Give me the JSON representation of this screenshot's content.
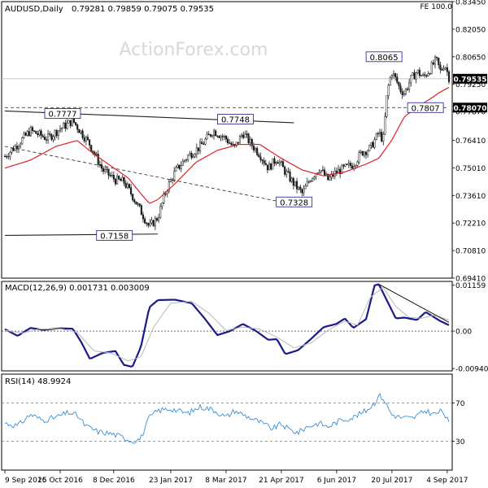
{
  "header": {
    "symbol": "AUDUSD,Daily",
    "ohlc": "0.79281 0.79859 0.79075 0.79535",
    "fe_label": "FE 100.0",
    "watermark": "ActionForex.com"
  },
  "colors": {
    "candle": "#1a1a1a",
    "ma": "#e0202a",
    "macd": "#1a1a8a",
    "signal": "#b8b8b8",
    "rsi": "#3a8fd6",
    "frame": "#000000",
    "label_border": "#1a1a8a"
  },
  "chart_data": [
    {
      "type": "candlestick",
      "title": "AUDUSD,Daily",
      "ylim": [
        0.6941,
        0.8345
      ],
      "yticks": [
        "0.83450",
        "0.82050",
        "0.80650",
        "0.79250",
        "0.77870",
        "0.76410",
        "0.75010",
        "0.73610",
        "0.72210",
        "0.70810",
        "0.69410"
      ],
      "ytick_values": [
        0.8345,
        0.8205,
        0.8065,
        0.7925,
        0.7787,
        0.7641,
        0.7501,
        0.7361,
        0.7221,
        0.7081,
        0.6941
      ],
      "price_tags": [
        {
          "label": "0.79535",
          "value": 0.79535
        },
        {
          "label": "0.78070",
          "value": 0.7807
        }
      ],
      "level_labels": [
        {
          "label": "0.7777",
          "value": 0.7777
        },
        {
          "label": "0.7748",
          "value": 0.7748
        },
        {
          "label": "0.8065",
          "value": 0.8065
        },
        {
          "label": "0.7807",
          "value": 0.7807
        },
        {
          "label": "0.7328",
          "value": 0.7328
        },
        {
          "label": "0.7158",
          "value": 0.7158
        }
      ],
      "series": [
        {
          "name": "close",
          "anchors": [
            [
              0,
              0.756
            ],
            [
              5,
              0.761
            ],
            [
              12,
              0.769
            ],
            [
              20,
              0.765
            ],
            [
              26,
              0.77
            ],
            [
              32,
              0.774
            ],
            [
              40,
              0.762
            ],
            [
              46,
              0.749
            ],
            [
              52,
              0.744
            ],
            [
              56,
              0.743
            ],
            [
              60,
              0.736
            ],
            [
              64,
              0.728
            ],
            [
              68,
              0.72
            ],
            [
              72,
              0.725
            ],
            [
              76,
              0.739
            ],
            [
              80,
              0.748
            ],
            [
              86,
              0.756
            ],
            [
              92,
              0.761
            ],
            [
              98,
              0.769
            ],
            [
              104,
              0.765
            ],
            [
              108,
              0.76
            ],
            [
              112,
              0.768
            ],
            [
              116,
              0.762
            ],
            [
              120,
              0.757
            ],
            [
              124,
              0.75
            ],
            [
              128,
              0.755
            ],
            [
              132,
              0.748
            ],
            [
              136,
              0.742
            ],
            [
              140,
              0.737
            ],
            [
              144,
              0.745
            ],
            [
              148,
              0.75
            ],
            [
              152,
              0.744
            ],
            [
              156,
              0.748
            ],
            [
              160,
              0.75
            ],
            [
              164,
              0.752
            ],
            [
              168,
              0.758
            ],
            [
              172,
              0.76
            ],
            [
              176,
              0.768
            ],
            [
              178,
              0.764
            ],
            [
              180,
              0.789
            ],
            [
              182,
              0.799
            ],
            [
              184,
              0.795
            ],
            [
              186,
              0.79
            ],
            [
              188,
              0.788
            ],
            [
              191,
              0.795
            ],
            [
              194,
              0.799
            ],
            [
              197,
              0.796
            ],
            [
              200,
              0.8
            ],
            [
              203,
              0.805
            ],
            [
              205,
              0.799
            ],
            [
              207,
              0.803
            ],
            [
              209,
              0.796
            ]
          ]
        },
        {
          "name": "MA",
          "anchors": [
            [
              0,
              0.75
            ],
            [
              12,
              0.754
            ],
            [
              24,
              0.761
            ],
            [
              34,
              0.764
            ],
            [
              42,
              0.757
            ],
            [
              50,
              0.751
            ],
            [
              58,
              0.745
            ],
            [
              64,
              0.737
            ],
            [
              68,
              0.732
            ],
            [
              72,
              0.734
            ],
            [
              80,
              0.742
            ],
            [
              90,
              0.753
            ],
            [
              100,
              0.759
            ],
            [
              110,
              0.762
            ],
            [
              120,
              0.762
            ],
            [
              130,
              0.755
            ],
            [
              140,
              0.749
            ],
            [
              150,
              0.746
            ],
            [
              160,
              0.748
            ],
            [
              170,
              0.752
            ],
            [
              176,
              0.755
            ],
            [
              182,
              0.764
            ],
            [
              188,
              0.776
            ],
            [
              194,
              0.781
            ],
            [
              200,
              0.785
            ],
            [
              204,
              0.788
            ],
            [
              209,
              0.791
            ]
          ]
        }
      ],
      "trendlines": [
        {
          "name": "upper-resistance",
          "from": [
            0,
            0.779
          ],
          "to": [
            136,
            0.773
          ]
        },
        {
          "name": "lower-support",
          "from": [
            0,
            0.7158
          ],
          "to": [
            72,
            0.7165
          ]
        },
        {
          "name": "dashed-trend",
          "from": [
            0,
            0.761
          ],
          "to": [
            130,
            0.7328
          ]
        },
        {
          "name": "dashed-level",
          "from": [
            0,
            0.7807
          ],
          "to": [
            209,
            0.7807
          ]
        }
      ]
    },
    {
      "type": "line",
      "title": "MACD(12,26,9) 0.001731 0.003009",
      "ylim": [
        -0.01,
        0.0125
      ],
      "yticks": [
        "0.01159",
        "0.00",
        "-0.009408"
      ],
      "ytick_values": [
        0.01159,
        0.0,
        -0.009408
      ],
      "series": [
        {
          "name": "MACD",
          "anchors": [
            [
              0,
              0.0005
            ],
            [
              6,
              -0.0012
            ],
            [
              12,
              0.0008
            ],
            [
              18,
              0.0003
            ],
            [
              26,
              0.0007
            ],
            [
              32,
              0.0006
            ],
            [
              36,
              -0.0028
            ],
            [
              40,
              -0.007
            ],
            [
              46,
              -0.0055
            ],
            [
              52,
              -0.005
            ],
            [
              56,
              -0.0085
            ],
            [
              60,
              -0.009
            ],
            [
              64,
              -0.004
            ],
            [
              68,
              0.006
            ],
            [
              72,
              0.0078
            ],
            [
              80,
              0.0079
            ],
            [
              88,
              0.007
            ],
            [
              94,
              0.0032
            ],
            [
              100,
              -0.001
            ],
            [
              106,
              0.0
            ],
            [
              112,
              0.0018
            ],
            [
              118,
              0.0001
            ],
            [
              124,
              -0.0022
            ],
            [
              128,
              -0.002
            ],
            [
              132,
              -0.0058
            ],
            [
              138,
              -0.0048
            ],
            [
              144,
              -0.002
            ],
            [
              150,
              0.001
            ],
            [
              156,
              0.0018
            ],
            [
              160,
              0.0032
            ],
            [
              164,
              0.0008
            ],
            [
              170,
              0.003
            ],
            [
              174,
              0.0115
            ],
            [
              176,
              0.0118
            ],
            [
              180,
              0.0075
            ],
            [
              184,
              0.0032
            ],
            [
              188,
              0.0034
            ],
            [
              194,
              0.0028
            ],
            [
              198,
              0.0048
            ],
            [
              202,
              0.0035
            ],
            [
              205,
              0.0025
            ],
            [
              209,
              0.0015
            ]
          ]
        },
        {
          "name": "Signal",
          "anchors": [
            [
              0,
              0.0002
            ],
            [
              8,
              -0.0005
            ],
            [
              16,
              0.0005
            ],
            [
              26,
              0.0006
            ],
            [
              34,
              -0.0003
            ],
            [
              42,
              -0.005
            ],
            [
              50,
              -0.0055
            ],
            [
              58,
              -0.0075
            ],
            [
              64,
              -0.0065
            ],
            [
              70,
              0.001
            ],
            [
              78,
              0.007
            ],
            [
              88,
              0.0075
            ],
            [
              96,
              0.0045
            ],
            [
              104,
              0.0002
            ],
            [
              112,
              0.001
            ],
            [
              120,
              0.0005
            ],
            [
              128,
              -0.0015
            ],
            [
              136,
              -0.0042
            ],
            [
              144,
              -0.003
            ],
            [
              152,
              0.0002
            ],
            [
              160,
              0.0025
            ],
            [
              166,
              0.0015
            ],
            [
              172,
              0.0085
            ],
            [
              178,
              0.011
            ],
            [
              184,
              0.0062
            ],
            [
              190,
              0.0035
            ],
            [
              196,
              0.0032
            ],
            [
              202,
              0.004
            ],
            [
              209,
              0.0028
            ]
          ]
        }
      ],
      "trendlines": [
        {
          "name": "macd-trendline",
          "from": [
            176,
            0.0118
          ],
          "to": [
            209,
            0.0022
          ]
        }
      ]
    },
    {
      "type": "line",
      "title": "RSI(14) 48.9924",
      "ylim": [
        0,
        100
      ],
      "yticks": [
        "70",
        "30"
      ],
      "ytick_values": [
        70,
        30
      ],
      "levels": [
        70,
        30
      ],
      "series": [
        {
          "name": "RSI",
          "anchors": [
            [
              0,
              49
            ],
            [
              6,
              46
            ],
            [
              12,
              58
            ],
            [
              18,
              52
            ],
            [
              24,
              55
            ],
            [
              30,
              60
            ],
            [
              34,
              57
            ],
            [
              38,
              46
            ],
            [
              44,
              40
            ],
            [
              50,
              38
            ],
            [
              56,
              34
            ],
            [
              60,
              30
            ],
            [
              64,
              33
            ],
            [
              68,
              55
            ],
            [
              72,
              62
            ],
            [
              78,
              64
            ],
            [
              86,
              59
            ],
            [
              92,
              66
            ],
            [
              98,
              63
            ],
            [
              104,
              55
            ],
            [
              108,
              62
            ],
            [
              114,
              56
            ],
            [
              120,
              50
            ],
            [
              126,
              43
            ],
            [
              130,
              48
            ],
            [
              134,
              42
            ],
            [
              138,
              39
            ],
            [
              142,
              45
            ],
            [
              148,
              49
            ],
            [
              152,
              45
            ],
            [
              158,
              52
            ],
            [
              164,
              55
            ],
            [
              170,
              62
            ],
            [
              174,
              70
            ],
            [
              176,
              78
            ],
            [
              178,
              75
            ],
            [
              182,
              58
            ],
            [
              186,
              55
            ],
            [
              192,
              54
            ],
            [
              198,
              62
            ],
            [
              202,
              58
            ],
            [
              206,
              62
            ],
            [
              209,
              49
            ]
          ]
        }
      ]
    }
  ],
  "xaxis": {
    "labels": [
      "9 Sep 2016",
      "25 Oct 2016",
      "8 Dec 2016",
      "23 Jan 2017",
      "8 Mar 2017",
      "21 Apr 2017",
      "6 Jun 2017",
      "20 Jul 2017",
      "4 Sep 2017"
    ],
    "label_index": [
      0,
      32,
      63,
      96,
      128,
      160,
      192,
      224,
      256
    ],
    "n_bars": 258
  }
}
